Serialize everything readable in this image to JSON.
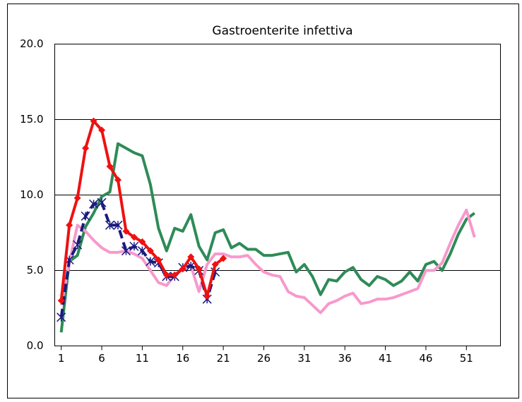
{
  "chart_data": {
    "type": "line",
    "title": "Gastroenterite infettiva",
    "x": [
      1,
      2,
      3,
      4,
      5,
      6,
      7,
      8,
      9,
      10,
      11,
      12,
      13,
      14,
      15,
      16,
      17,
      18,
      19,
      20,
      21,
      22,
      23,
      24,
      25,
      26,
      27,
      28,
      29,
      30,
      31,
      32,
      33,
      34,
      35,
      36,
      37,
      38,
      39,
      40,
      41,
      42,
      43,
      44,
      45,
      46,
      47,
      48,
      49,
      50,
      51,
      52
    ],
    "xlim": [
      0.2,
      55.2
    ],
    "xticks": [
      1,
      6,
      11,
      16,
      21,
      26,
      31,
      36,
      41,
      46,
      51
    ],
    "ylim": [
      0,
      20
    ],
    "yticks": [
      {
        "value": 0,
        "label": "0.0"
      },
      {
        "value": 5,
        "label": "5.0"
      },
      {
        "value": 10,
        "label": "10.0"
      },
      {
        "value": 15,
        "label": "15.0"
      },
      {
        "value": 20,
        "label": "20.0"
      }
    ],
    "grid": true,
    "series": [
      {
        "color": "#2e8b57",
        "style": "solid",
        "marker": "none",
        "values": [
          0.9,
          5.6,
          6.0,
          7.9,
          8.8,
          9.9,
          10.2,
          13.4,
          13.1,
          12.8,
          12.6,
          10.7,
          7.8,
          6.3,
          7.8,
          7.6,
          8.7,
          6.6,
          5.7,
          7.5,
          7.7,
          6.5,
          6.8,
          6.4,
          6.4,
          6.0,
          6.0,
          6.1,
          6.2,
          4.9,
          5.4,
          4.6,
          3.4,
          4.4,
          4.3,
          4.9,
          5.2,
          4.4,
          4.0,
          4.6,
          4.4,
          4.0,
          4.3,
          4.9,
          4.3,
          5.4,
          5.6,
          5.0,
          6.1,
          7.4,
          8.4,
          8.8
        ]
      },
      {
        "color": "#f799cc",
        "style": "solid",
        "marker": "none",
        "values": [
          2.7,
          5.5,
          8.0,
          7.6,
          7.0,
          6.5,
          6.2,
          6.2,
          6.3,
          6.1,
          5.8,
          5.0,
          4.2,
          4.0,
          4.7,
          5.1,
          5.3,
          3.6,
          5.4,
          6.1,
          6.1,
          5.9,
          5.9,
          6.0,
          5.4,
          4.9,
          4.7,
          4.6,
          3.6,
          3.3,
          3.2,
          2.7,
          2.2,
          2.8,
          3.0,
          3.3,
          3.5,
          2.8,
          2.9,
          3.1,
          3.1,
          3.2,
          3.4,
          3.6,
          3.8,
          5.0,
          5.0,
          5.5,
          6.8,
          8.0,
          9.0,
          7.2
        ]
      },
      {
        "color": "#1a1a80",
        "style": "dashed",
        "marker": "star",
        "values": [
          1.9,
          5.7,
          6.7,
          8.6,
          9.4,
          9.5,
          8.0,
          8.0,
          6.3,
          6.6,
          6.3,
          5.6,
          5.5,
          4.6,
          4.6,
          5.2,
          5.3,
          5.0,
          3.1,
          4.9,
          null,
          null,
          null,
          null,
          null,
          null,
          null,
          null,
          null,
          null,
          null,
          null,
          null,
          null,
          null,
          null,
          null,
          null,
          null,
          null,
          null,
          null,
          null,
          null,
          null,
          null,
          null,
          null,
          null,
          null,
          null,
          null
        ]
      },
      {
        "color": "#ee1111",
        "style": "solid",
        "marker": "diamond",
        "values": [
          3.0,
          8.0,
          9.8,
          13.1,
          14.9,
          14.3,
          11.9,
          11.0,
          7.6,
          7.2,
          6.9,
          6.3,
          5.7,
          4.7,
          4.7,
          5.1,
          5.9,
          5.1,
          3.3,
          5.4,
          5.8,
          null,
          null,
          null,
          null,
          null,
          null,
          null,
          null,
          null,
          null,
          null,
          null,
          null,
          null,
          null,
          null,
          null,
          null,
          null,
          null,
          null,
          null,
          null,
          null,
          null,
          null,
          null,
          null,
          null,
          null,
          null
        ]
      }
    ]
  }
}
